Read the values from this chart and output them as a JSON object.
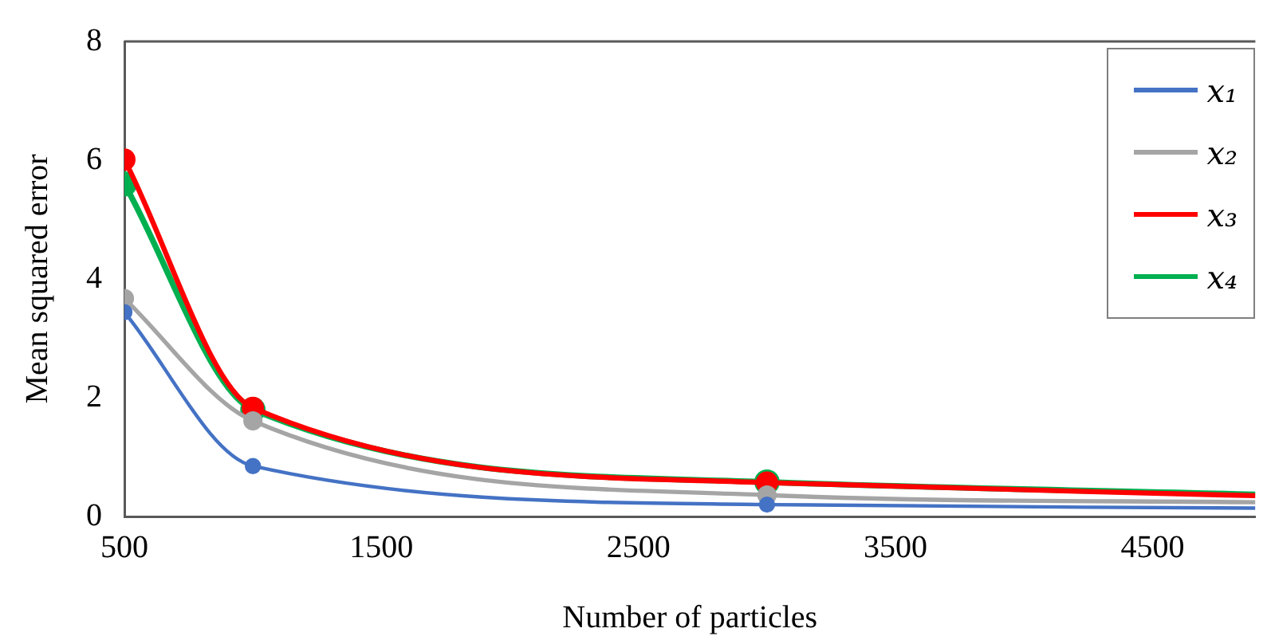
{
  "chart_data": {
    "type": "line",
    "xlabel": "Number of particles",
    "ylabel": "Mean squared error",
    "x": [
      500,
      1000,
      3000,
      4900
    ],
    "series": [
      {
        "name": "x₁",
        "color": "#4472c4",
        "values": [
          3.44,
          0.85,
          0.2,
          0.14
        ]
      },
      {
        "name": "x₂",
        "color": "#a5a5a5",
        "values": [
          3.67,
          1.61,
          0.36,
          0.24
        ]
      },
      {
        "name": "x₃",
        "color": "#ff0000",
        "values": [
          6.01,
          1.83,
          0.57,
          0.35
        ]
      },
      {
        "name": "x₄",
        "color": "#00b050",
        "values": [
          5.6,
          1.8,
          0.58,
          0.37
        ]
      }
    ],
    "xlim": [
      500,
      4900
    ],
    "xticks": [
      500,
      1500,
      2500,
      3500,
      4500
    ],
    "ylim": [
      0,
      8
    ],
    "yticks": [
      0,
      2,
      4,
      6,
      8
    ],
    "grid": false,
    "legend": "top right",
    "marker": "circle",
    "line_style": "solid"
  }
}
